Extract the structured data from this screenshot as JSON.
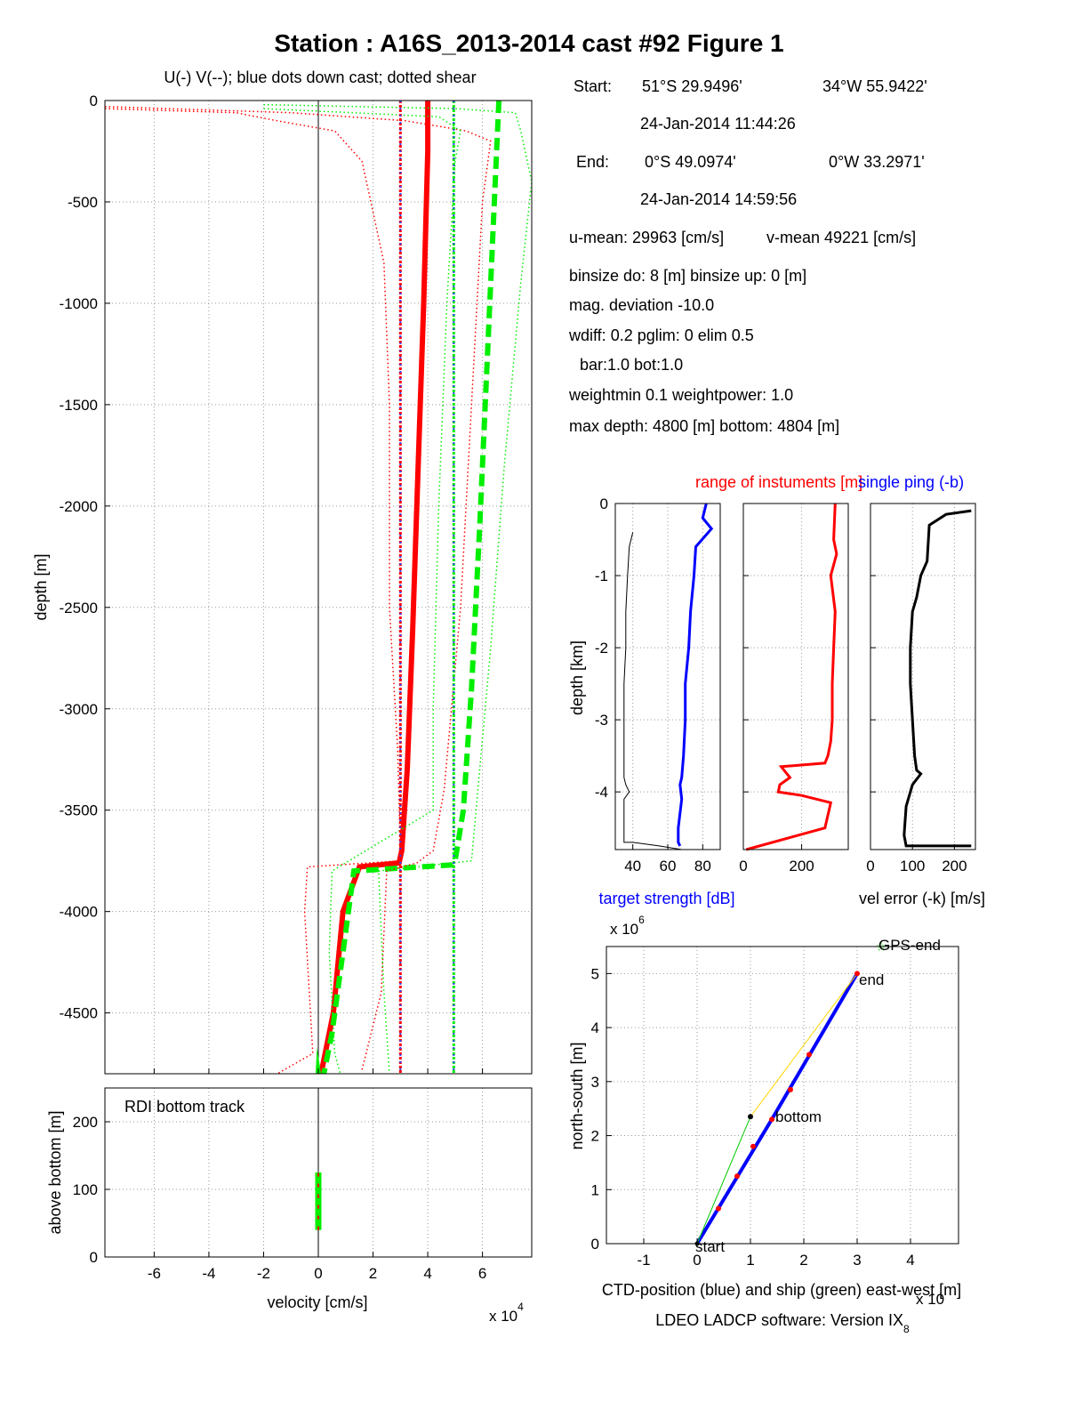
{
  "figure": {
    "title": "Station : A16S_2013-2014 cast #92  Figure 1",
    "footer": "LDEO LADCP software: Version IX",
    "footer_sub": "8"
  },
  "info": {
    "start_label": "Start:",
    "start_lat": "51°S 29.9496'",
    "start_lon": "34°W 55.9422'",
    "start_time": "24-Jan-2014 11:44:26",
    "end_label": "End:",
    "end_lat": "0°S 49.0974'",
    "end_lon": "0°W 33.2971'",
    "end_time": "24-Jan-2014 14:59:56",
    "u_mean": "u-mean: 29963 [cm/s]",
    "v_mean": "v-mean 49221 [cm/s]",
    "binsize": "binsize do: 8 [m]  binsize up:  0 [m]",
    "mag_dev": "mag. deviation -10.0",
    "wdiff": "wdiff: 0.2  pglim: 0  elim 0.5",
    "bar": "bar:1.0 bot:1.0",
    "weight": "weightmin 0.1  weightpower: 1.0",
    "maxdepth": "max depth: 4800 [m]   bottom: 4804 [m]"
  },
  "chart_data": [
    {
      "id": "velocity_profile",
      "type": "line",
      "subtitle": "U(-) V(--); blue dots down cast; dotted shear",
      "xlabel": "velocity [cm/s]",
      "x_multiplier": "x 10",
      "x_multiplier_exp": "4",
      "ylabel": "depth [m]",
      "xlim": [
        -7.8,
        7.8
      ],
      "ylim": [
        -4800,
        0
      ],
      "x_ticks": [
        -6,
        -4,
        -2,
        0,
        2,
        4,
        6
      ],
      "y_ticks": [
        0,
        -500,
        -1000,
        -1500,
        -2000,
        -2500,
        -3000,
        -3500,
        -4000,
        -4500
      ],
      "grid": true,
      "series": [
        {
          "style": "solid",
          "color": "#ff0000",
          "x": [
            4.0,
            4.0,
            3.85,
            3.65,
            3.45,
            3.25,
            3.05,
            2.95,
            1.5,
            0.9,
            0.55,
            0.1
          ],
          "y": [
            0,
            -250,
            -1000,
            -1800,
            -2600,
            -3300,
            -3700,
            -3760,
            -3780,
            -4000,
            -4500,
            -4800
          ]
        },
        {
          "style": "dashed",
          "color": "#00ee00",
          "x": [
            6.6,
            6.5,
            6.2,
            5.9,
            5.6,
            5.3,
            5.0,
            4.9,
            1.3,
            1.0,
            0.5,
            0.2
          ],
          "y": [
            0,
            -300,
            -1200,
            -2100,
            -2900,
            -3500,
            -3750,
            -3770,
            -3800,
            -4100,
            -4600,
            -4800
          ]
        },
        {
          "style": "dotted",
          "color": "#ff0000",
          "x": [
            -7.8,
            -3.0,
            -1.5,
            0.6,
            1.6,
            2.4,
            2.6,
            2.6,
            2.9,
            3.0,
            3.0,
            -0.4,
            -0.5,
            -0.2,
            -1.5
          ],
          "y": [
            -40,
            -60,
            -100,
            -150,
            -300,
            -800,
            -1500,
            -2500,
            -3200,
            -3700,
            -3750,
            -3780,
            -4000,
            -4700,
            -4800
          ]
        },
        {
          "style": "dotted",
          "color": "#ff0000",
          "x": [
            -7.8,
            -1.0,
            3.2,
            5.4,
            6.3,
            6.0,
            5.6,
            5.2,
            4.6,
            4.2,
            3.6,
            2.5,
            2.3,
            1.6
          ],
          "y": [
            -30,
            -60,
            -100,
            -150,
            -200,
            -500,
            -1500,
            -2500,
            -3400,
            -3700,
            -3760,
            -3800,
            -4400,
            -4780
          ]
        },
        {
          "style": "dotted",
          "color": "#00ee00",
          "x": [
            -2.0,
            4.4,
            5.2,
            5.0,
            4.7,
            4.4,
            4.2,
            4.2,
            0.5,
            0.4,
            0.6,
            0.8
          ],
          "y": [
            -40,
            -80,
            -150,
            -300,
            -1000,
            -2000,
            -3000,
            -3500,
            -3800,
            -4200,
            -4700,
            -4800
          ]
        },
        {
          "style": "dotted",
          "color": "#00ee00",
          "x": [
            -2.0,
            5.0,
            7.2,
            7.4,
            7.8,
            7.4,
            6.8,
            6.3,
            5.9,
            5.6,
            2.2,
            2.4,
            2.6
          ],
          "y": [
            -20,
            -40,
            -60,
            -150,
            -400,
            -900,
            -1800,
            -2700,
            -3300,
            -3750,
            -3800,
            -4400,
            -4800
          ]
        },
        {
          "style": "dots",
          "color": "#3344ff",
          "x": [
            3.0,
            3.0
          ],
          "y": [
            0,
            -4800
          ]
        },
        {
          "style": "dots",
          "color": "#3344ff",
          "x": [
            4.95,
            4.95
          ],
          "y": [
            0,
            -4800
          ]
        }
      ]
    },
    {
      "id": "bottom_track",
      "type": "line",
      "label": "RDI bottom track",
      "ylabel": "above bottom [m]",
      "xlim": [
        -7.8,
        7.8
      ],
      "ylim": [
        0,
        250
      ],
      "x_ticks": [
        -6,
        -4,
        -2,
        0,
        2,
        4,
        6
      ],
      "x_tick_labels": [
        "-6",
        "-4",
        "-2",
        "0",
        "2",
        "4",
        "6"
      ],
      "y_ticks": [
        0,
        100,
        200
      ],
      "grid": true,
      "series": [
        {
          "style": "dashed",
          "color": "#00ee00",
          "x": [
            0,
            0
          ],
          "y": [
            40,
            125
          ]
        },
        {
          "style": "solid",
          "color": "#ff0000",
          "x": [
            0,
            0
          ],
          "y": [
            40,
            125
          ]
        }
      ]
    },
    {
      "id": "target_strength",
      "type": "line",
      "xlabel": "target strength [dB]",
      "ylabel": "depth [km]",
      "xlim": [
        30,
        90
      ],
      "ylim": [
        -4.8,
        0
      ],
      "x_ticks": [
        40,
        60,
        80
      ],
      "y_ticks": [
        0,
        -1,
        -2,
        -3,
        -4
      ],
      "grid": true,
      "series": [
        {
          "color": "#0000ff",
          "x": [
            82,
            80,
            85,
            76,
            75,
            73,
            72,
            70,
            70,
            69,
            68,
            67,
            68,
            66,
            66,
            67
          ],
          "y": [
            0,
            -0.2,
            -0.35,
            -0.6,
            -1.0,
            -1.5,
            -2.0,
            -2.5,
            -3.0,
            -3.5,
            -3.8,
            -3.9,
            -4.1,
            -4.5,
            -4.7,
            -4.75
          ]
        },
        {
          "color": "#000000",
          "x": [
            40,
            38,
            37,
            36,
            36,
            35,
            35,
            35,
            35,
            36,
            38,
            35,
            35,
            40,
            55,
            68
          ],
          "y": [
            -0.4,
            -0.6,
            -1.0,
            -1.5,
            -2.0,
            -2.5,
            -3.0,
            -3.5,
            -3.8,
            -3.9,
            -4.0,
            -4.1,
            -4.7,
            -4.7,
            -4.75,
            -4.8
          ]
        }
      ]
    },
    {
      "id": "instrument_range",
      "type": "line",
      "label_range": "range of instuments [m]",
      "label_ping": "single ping (-b)",
      "xlim": [
        0,
        360
      ],
      "ylim": [
        -4.8,
        0
      ],
      "x_ticks": [
        0,
        200
      ],
      "grid": true,
      "series": [
        {
          "color": "#ff0000",
          "x": [
            315,
            310,
            320,
            300,
            315,
            310,
            305,
            305,
            300,
            290,
            280,
            130,
            160,
            125,
            120,
            200,
            300,
            280,
            10
          ],
          "y": [
            0,
            -0.5,
            -0.7,
            -1.0,
            -1.5,
            -2.0,
            -2.5,
            -3.0,
            -3.3,
            -3.5,
            -3.6,
            -3.65,
            -3.8,
            -3.9,
            -4.0,
            -4.05,
            -4.15,
            -4.5,
            -4.8
          ]
        }
      ]
    },
    {
      "id": "velocity_error",
      "type": "line",
      "xlabel": "vel error (-k) [m/s]",
      "xlim": [
        0,
        250
      ],
      "ylim": [
        -4.8,
        0
      ],
      "x_ticks": [
        0,
        100,
        200
      ],
      "grid": true,
      "series": [
        {
          "color": "#000000",
          "x": [
            240,
            180,
            140,
            135,
            120,
            110,
            100,
            95,
            95,
            100,
            105,
            110,
            120,
            100,
            85,
            80,
            85,
            240
          ],
          "y": [
            -0.1,
            -0.15,
            -0.3,
            -0.8,
            -1.0,
            -1.3,
            -1.5,
            -2.0,
            -2.5,
            -3.0,
            -3.5,
            -3.7,
            -3.75,
            -3.9,
            -4.2,
            -4.6,
            -4.75,
            -4.75
          ]
        }
      ]
    },
    {
      "id": "position_track",
      "type": "line",
      "y_multiplier": "x 10",
      "y_multiplier_exp": "6",
      "x_multiplier": "x 10",
      "xlabel": "CTD-position (blue) and ship (green) east-west [m]",
      "ylabel": "north-south [m]",
      "xlim": [
        -1.7,
        4.9
      ],
      "ylim": [
        0,
        5.5
      ],
      "x_ticks": [
        -1,
        0,
        1,
        2,
        3,
        4
      ],
      "y_ticks": [
        0,
        1,
        2,
        3,
        4,
        5
      ],
      "grid": true,
      "labels": [
        "start",
        "end",
        "bottom",
        "GPS-end"
      ],
      "series": [
        {
          "name": "ctd",
          "color": "#0000ff",
          "x": [
            0,
            1.4,
            3.0
          ],
          "y": [
            0,
            2.3,
            5.0
          ]
        },
        {
          "name": "ship",
          "color": "#00cc00",
          "x": [
            0,
            1.0
          ],
          "y": [
            0,
            2.35
          ]
        },
        {
          "name": "ship_link",
          "color": "#ffd700",
          "x": [
            1.0,
            3.0
          ],
          "y": [
            2.35,
            5.0
          ]
        },
        {
          "name": "markers",
          "color": "#ff0000",
          "x": [
            0.4,
            0.75,
            1.05,
            1.4,
            1.75,
            2.1,
            3.0
          ],
          "y": [
            0.65,
            1.25,
            1.8,
            2.3,
            2.85,
            3.5,
            5.0
          ]
        },
        {
          "name": "bottom_marker",
          "color": "#000000",
          "x": [
            1.0
          ],
          "y": [
            2.35
          ]
        },
        {
          "name": "gps_end",
          "color": "#00cc00",
          "x": [
            3.45
          ],
          "y": [
            5.5
          ]
        }
      ]
    }
  ]
}
